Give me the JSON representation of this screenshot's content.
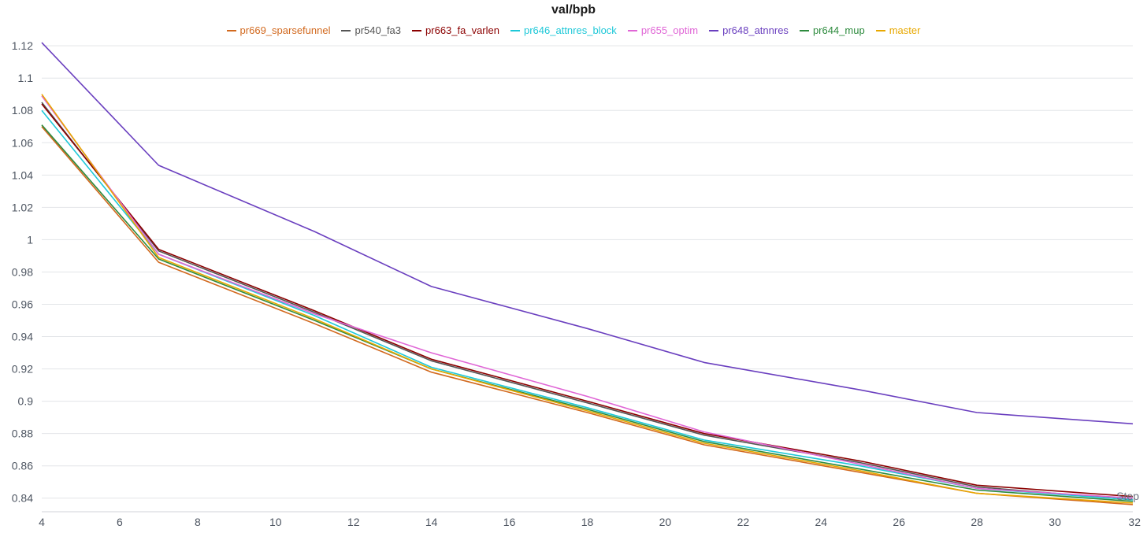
{
  "chart_data": {
    "type": "line",
    "title": "val/bpb",
    "xlabel": "Step",
    "ylabel": "",
    "xlim": [
      4,
      32
    ],
    "ylim": [
      0.835,
      1.123
    ],
    "x_ticks": [
      4,
      6,
      8,
      10,
      12,
      14,
      16,
      18,
      20,
      22,
      24,
      26,
      28,
      30,
      32
    ],
    "y_ticks": [
      0.84,
      0.86,
      0.88,
      0.9,
      0.92,
      0.94,
      0.96,
      0.98,
      1,
      1.02,
      1.04,
      1.06,
      1.08,
      1.1,
      1.12
    ],
    "grid": "horizontal",
    "legend_position": "top-center",
    "series": [
      {
        "name": "pr669_sparsefunnel",
        "color": "#d2691e",
        "x": [
          4,
          7,
          11,
          14,
          18,
          21,
          25,
          28,
          32
        ],
        "y": [
          1.07,
          0.986,
          0.948,
          0.918,
          0.893,
          0.873,
          0.856,
          0.843,
          0.836
        ]
      },
      {
        "name": "pr540_fa3",
        "color": "#555555",
        "x": [
          4,
          7,
          11,
          14,
          18,
          21,
          25,
          28,
          32
        ],
        "y": [
          1.085,
          0.993,
          0.955,
          0.925,
          0.899,
          0.879,
          0.862,
          0.847,
          0.839
        ]
      },
      {
        "name": "pr663_fa_varlen",
        "color": "#8b0000",
        "x": [
          4,
          7,
          11,
          14,
          18,
          21,
          25,
          28,
          32
        ],
        "y": [
          1.084,
          0.994,
          0.956,
          0.926,
          0.9,
          0.88,
          0.863,
          0.848,
          0.841
        ]
      },
      {
        "name": "pr646_attnres_block",
        "color": "#1ec8d8",
        "x": [
          4,
          7,
          11,
          14,
          18,
          21,
          25,
          28,
          32
        ],
        "y": [
          1.08,
          0.991,
          0.953,
          0.921,
          0.896,
          0.876,
          0.86,
          0.846,
          0.839
        ]
      },
      {
        "name": "pr655_optim",
        "color": "#e066d6",
        "x": [
          4,
          7,
          11,
          14,
          18,
          21,
          25,
          28,
          32
        ],
        "y": [
          1.089,
          0.991,
          0.954,
          0.93,
          0.903,
          0.881,
          0.861,
          0.846,
          0.84
        ]
      },
      {
        "name": "pr648_atnnres",
        "color": "#6a3fbf",
        "x": [
          4,
          7,
          11,
          14,
          18,
          21,
          25,
          28,
          32
        ],
        "y": [
          1.122,
          1.046,
          1.005,
          0.971,
          0.945,
          0.924,
          0.907,
          0.893,
          0.886
        ]
      },
      {
        "name": "pr644_mup",
        "color": "#2e8b3e",
        "x": [
          4,
          7,
          11,
          14,
          18,
          21,
          25,
          28,
          32
        ],
        "y": [
          1.071,
          0.988,
          0.95,
          0.92,
          0.895,
          0.875,
          0.858,
          0.845,
          0.838
        ]
      },
      {
        "name": "master",
        "color": "#e8a800",
        "x": [
          4,
          7,
          11,
          14,
          18,
          21,
          25,
          28,
          32
        ],
        "y": [
          1.09,
          0.989,
          0.951,
          0.92,
          0.894,
          0.874,
          0.857,
          0.843,
          0.837
        ]
      }
    ]
  }
}
